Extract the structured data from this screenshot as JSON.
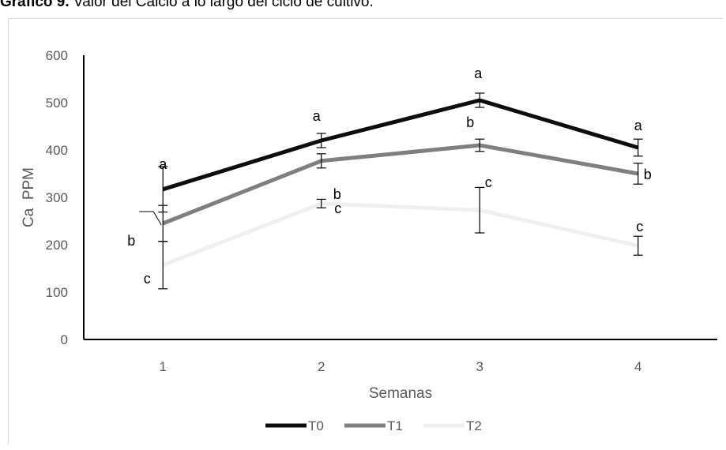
{
  "caption": {
    "label": "Gráfico 9.",
    "text": " Valor del Calcio a lo largo del ciclo de cultivo."
  },
  "colors": {
    "T0": "#0d0d0d",
    "T1": "#7f7f7f",
    "T2": "#efefef",
    "axis": "#000000",
    "text": "#595959"
  },
  "chart_data": {
    "type": "line",
    "title": "",
    "xlabel": "Semanas",
    "ylabel": "Ca  PPM",
    "categories": [
      "1",
      "2",
      "3",
      "4"
    ],
    "ylim": [
      0,
      600
    ],
    "yticks": [
      0,
      100,
      200,
      300,
      400,
      500,
      600
    ],
    "grid": false,
    "legend": "bottom",
    "series": [
      {
        "name": "T0",
        "values": [
          317,
          420,
          505,
          405
        ],
        "error": [
          48,
          15,
          15,
          18
        ],
        "letters": [
          "a",
          "a",
          "a",
          "a"
        ]
      },
      {
        "name": "T1",
        "values": [
          245,
          377,
          410,
          350
        ],
        "error": [
          38,
          15,
          13,
          22
        ],
        "letters": [
          "b",
          "b",
          "b",
          "b"
        ]
      },
      {
        "name": "T2",
        "values": [
          157,
          287,
          273,
          198
        ],
        "error": [
          50,
          9,
          48,
          20
        ],
        "letters": [
          "c",
          "c",
          "c",
          "c"
        ]
      }
    ]
  }
}
